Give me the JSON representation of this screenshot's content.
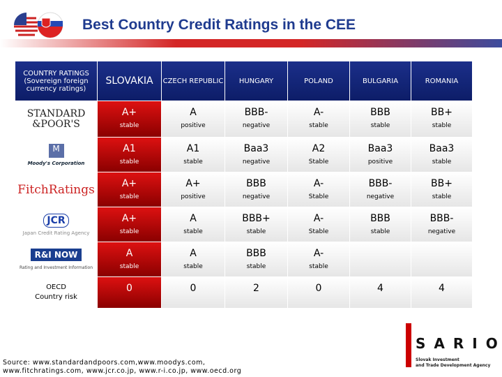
{
  "header": {
    "title": "Best Country Credit Ratings in the CEE"
  },
  "table": {
    "columns": [
      "COUNTRY RATINGS (Sovereign foreign currency ratings)",
      "SLOVAKIA",
      "CZECH REPUBLIC",
      "HUNGARY",
      "POLAND",
      "BULGARIA",
      "ROMANIA"
    ],
    "rows": [
      {
        "label": [
          "STANDARD",
          "&POOR'S"
        ],
        "cells": [
          {
            "rating": "A+",
            "outlook": "stable"
          },
          {
            "rating": "A",
            "outlook": "positive"
          },
          {
            "rating": "BBB-",
            "outlook": "negative"
          },
          {
            "rating": "A-",
            "outlook": "stable"
          },
          {
            "rating": "BBB",
            "outlook": "stable"
          },
          {
            "rating": "BB+",
            "outlook": "stable"
          }
        ]
      },
      {
        "label": [
          "M",
          "Moody's Corporation"
        ],
        "cells": [
          {
            "rating": "A1",
            "outlook": "stable"
          },
          {
            "rating": "A1",
            "outlook": "stable"
          },
          {
            "rating": "Baa3",
            "outlook": "negative"
          },
          {
            "rating": "A2",
            "outlook": "Stable"
          },
          {
            "rating": "Baa3",
            "outlook": "positive"
          },
          {
            "rating": "Baa3",
            "outlook": "stable"
          }
        ]
      },
      {
        "label": [
          "FitchRatings"
        ],
        "cells": [
          {
            "rating": "A+",
            "outlook": "stable"
          },
          {
            "rating": "A+",
            "outlook": "positive"
          },
          {
            "rating": "BBB",
            "outlook": "negative"
          },
          {
            "rating": "A-",
            "outlook": "Stable"
          },
          {
            "rating": "BBB-",
            "outlook": "negative"
          },
          {
            "rating": "BB+",
            "outlook": "stable"
          }
        ]
      },
      {
        "label": [
          "JCR",
          "Japan Credit Rating Agency"
        ],
        "cells": [
          {
            "rating": "A+",
            "outlook": "stable"
          },
          {
            "rating": "A",
            "outlook": "stable"
          },
          {
            "rating": "BBB+",
            "outlook": "stable"
          },
          {
            "rating": "A-",
            "outlook": "Stable"
          },
          {
            "rating": "BBB",
            "outlook": "stable"
          },
          {
            "rating": "BBB-",
            "outlook": "negative"
          }
        ]
      },
      {
        "label": [
          "R&I NOW",
          "Rating and Investment Information"
        ],
        "cells": [
          {
            "rating": "A",
            "outlook": "stable"
          },
          {
            "rating": "A",
            "outlook": "stable"
          },
          {
            "rating": "BBB",
            "outlook": "stable"
          },
          {
            "rating": "A-",
            "outlook": "stable"
          },
          null,
          null
        ]
      },
      {
        "label": [
          "OECD",
          "Country risk"
        ],
        "cells": [
          {
            "rating": "0"
          },
          {
            "rating": "0"
          },
          {
            "rating": "2"
          },
          {
            "rating": "0"
          },
          {
            "rating": "4"
          },
          {
            "rating": "4"
          }
        ]
      }
    ]
  },
  "source": [
    "Source: www.standardandpoors.com,www.moodys.com,",
    "www.fitchratings.com, www.jcr.co.jp, www.r-i.co.jp, www.oecd.org"
  ],
  "logo": {
    "name": "SARIO",
    "tagline": [
      "Slovak Investment",
      "and Trade Development Agency"
    ]
  }
}
